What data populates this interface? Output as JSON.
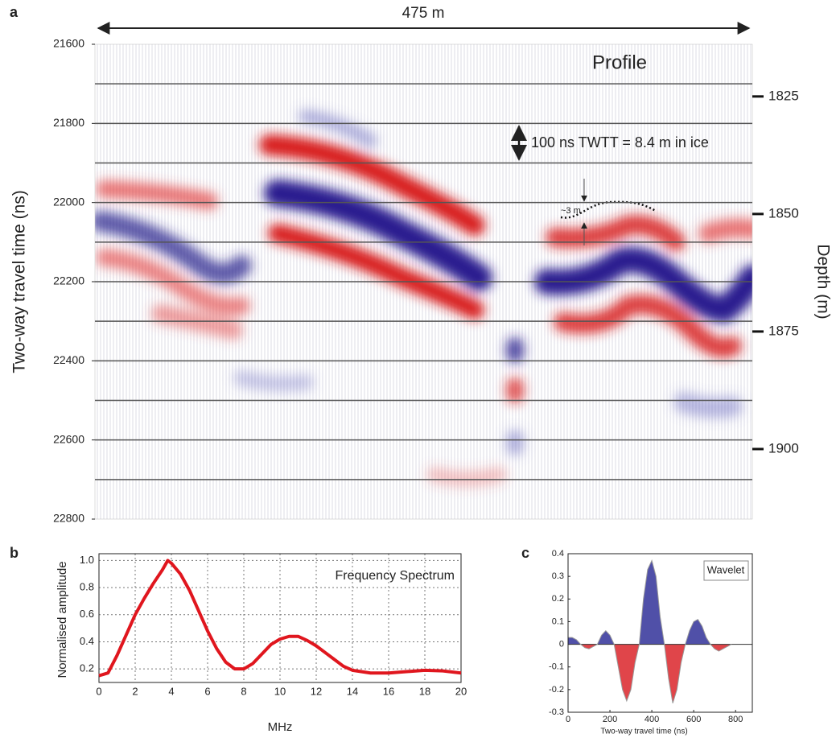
{
  "chart_data": [
    {
      "type": "radargram",
      "panel_label": "a",
      "annotations": {
        "width": "475 m",
        "profile": "Profile",
        "scale": "100 ns TWTT = 8.4 m in ice",
        "offset": "~3 m"
      },
      "ylabel": "Two-way travel time (ns)",
      "y2label": "Depth (m)",
      "invert_y": true,
      "ylim": [
        21600,
        22800
      ],
      "yticks": [
        21600,
        21800,
        22000,
        22200,
        22400,
        22600,
        22800
      ],
      "minor_yticks": [
        21700,
        21800,
        21900,
        22000,
        22100,
        22200,
        22300,
        22400,
        22500,
        22600,
        22700
      ],
      "y2lim": [
        1813.9,
        1914.9
      ],
      "y2ticks": [
        1825,
        1850,
        1875,
        1900
      ]
    },
    {
      "type": "line",
      "panel_label": "b",
      "title": "Frequency Spectrum",
      "xlabel": "MHz",
      "ylabel": "Normalised amplitude",
      "color": "#e0161e",
      "grid": true,
      "x": [
        0,
        0.5,
        1,
        1.5,
        2,
        2.5,
        3,
        3.5,
        3.8,
        4,
        4.5,
        5,
        5.5,
        6,
        6.5,
        7,
        7.5,
        8,
        8.5,
        9,
        9.5,
        10,
        10.5,
        11,
        11.5,
        12,
        12.5,
        13,
        13.5,
        14,
        15,
        16,
        17,
        18,
        19,
        20
      ],
      "values": [
        0.15,
        0.17,
        0.3,
        0.45,
        0.6,
        0.72,
        0.83,
        0.93,
        1.0,
        0.98,
        0.9,
        0.78,
        0.63,
        0.48,
        0.35,
        0.25,
        0.2,
        0.2,
        0.24,
        0.31,
        0.38,
        0.42,
        0.44,
        0.44,
        0.41,
        0.37,
        0.32,
        0.27,
        0.22,
        0.19,
        0.17,
        0.17,
        0.18,
        0.19,
        0.185,
        0.17
      ],
      "xlim": [
        0,
        20
      ],
      "xticks": [
        0,
        2,
        4,
        6,
        8,
        10,
        12,
        14,
        16,
        18,
        20
      ],
      "ylim": [
        0.1,
        1.05
      ],
      "yticks": [
        0.2,
        0.4,
        0.6,
        0.8,
        {
          "value": 1,
          "label": "1.0"
        }
      ]
    },
    {
      "type": "area",
      "panel_label": "c",
      "title": "Wavelet",
      "xlabel": "Two-way travel time (ns)",
      "positive_color": "#5050a8",
      "negative_color": "#e0454a",
      "x": [
        0,
        20,
        40,
        60,
        80,
        100,
        120,
        140,
        160,
        180,
        200,
        220,
        240,
        260,
        280,
        300,
        320,
        340,
        360,
        380,
        400,
        420,
        440,
        460,
        480,
        500,
        520,
        540,
        560,
        580,
        600,
        620,
        640,
        660,
        680,
        700,
        720,
        740,
        760,
        780
      ],
      "values": [
        0.03,
        0.03,
        0.02,
        0.0,
        -0.015,
        -0.02,
        -0.01,
        0.0,
        0.04,
        0.06,
        0.04,
        0.0,
        -0.1,
        -0.2,
        -0.25,
        -0.2,
        -0.08,
        0.0,
        0.2,
        0.33,
        0.37,
        0.3,
        0.12,
        0.0,
        -0.15,
        -0.26,
        -0.2,
        -0.08,
        0.0,
        0.06,
        0.1,
        0.11,
        0.08,
        0.03,
        0.0,
        -0.02,
        -0.03,
        -0.02,
        -0.01,
        0.0
      ],
      "xlim": [
        0,
        880
      ],
      "xticks": [
        0,
        200,
        400,
        600,
        800
      ],
      "ylim": [
        -0.3,
        0.4
      ],
      "yticks": [
        -0.3,
        -0.2,
        -0.1,
        0,
        0.1,
        0.2,
        0.3,
        0.4
      ]
    }
  ]
}
